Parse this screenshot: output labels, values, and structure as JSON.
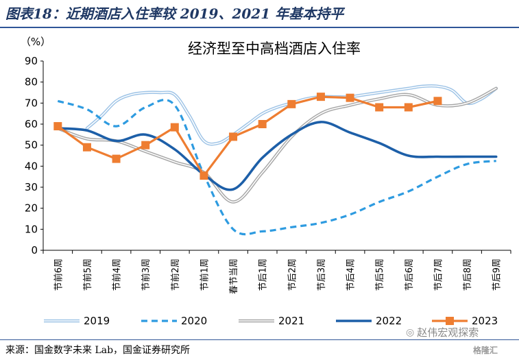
{
  "figure_title": "图表18：近期酒店入住率较 2019、2021 年基本持平",
  "source": "来源：国金数字未来 Lab，国金证券研究所",
  "watermark": "赵伟宏观探索",
  "watermark_icon": "wechat-icon",
  "watermark2": "格隆汇",
  "chart_data": {
    "type": "line",
    "title": "经济型至中高档酒店入住率",
    "ylabel": "（%）",
    "xlabel": "",
    "ylim": [
      0,
      90
    ],
    "yticks": [
      0,
      10,
      20,
      30,
      40,
      50,
      60,
      70,
      80,
      90
    ],
    "grid": false,
    "legend_position": "bottom",
    "categories": [
      "节前6周",
      "节前5周",
      "节前4周",
      "节前3周",
      "节前2周",
      "节前1周",
      "春节当周",
      "节后1周",
      "节后2周",
      "节后3周",
      "节后4周",
      "节后5周",
      "节后6周",
      "节后7周",
      "节后8周",
      "节后9周"
    ],
    "series": [
      {
        "name": "2019",
        "color": "#9dc3e6",
        "style": "double",
        "x": [
          1.0,
          1.5,
          2.0,
          2.5,
          3.0,
          3.5,
          4.0,
          4.5,
          5.0,
          5.5,
          6.0,
          6.5,
          7.0,
          7.5,
          8.0,
          8.5,
          9.0,
          9.5,
          10.0,
          10.5,
          11.0,
          11.5,
          12.0,
          12.5,
          13.0,
          13.5,
          14.0,
          14.5,
          15.0
        ],
        "values": [
          58,
          64,
          71,
          74,
          75,
          75,
          74,
          64,
          52,
          51,
          55,
          60,
          65,
          68,
          70,
          72,
          73,
          73,
          73,
          74,
          75,
          76,
          77,
          78,
          78,
          76,
          70,
          72,
          77
        ]
      },
      {
        "name": "2020",
        "color": "#2e9be0",
        "style": "dashed",
        "values": [
          71,
          67,
          59,
          68,
          69,
          36,
          10,
          9,
          11,
          13,
          17,
          23,
          28,
          35,
          41,
          42.5
        ]
      },
      {
        "name": "2021",
        "color": "#a6a6a6",
        "style": "double",
        "values": [
          58,
          53,
          52,
          47,
          42,
          37,
          23,
          37,
          54,
          65,
          69,
          72,
          74,
          69,
          70,
          77
        ]
      },
      {
        "name": "2022",
        "color": "#1d5fa8",
        "style": "solid",
        "values": [
          58,
          57,
          52,
          55,
          48,
          36,
          29,
          44,
          55,
          61,
          56,
          51,
          45,
          44.5,
          44.5,
          44.5
        ]
      },
      {
        "name": "2023",
        "color": "#ee7d31",
        "style": "markers",
        "values": [
          59,
          49,
          43.5,
          50,
          58.5,
          35.5,
          54,
          60,
          69.5,
          73,
          72.5,
          68,
          68,
          71,
          null,
          null
        ]
      }
    ]
  }
}
